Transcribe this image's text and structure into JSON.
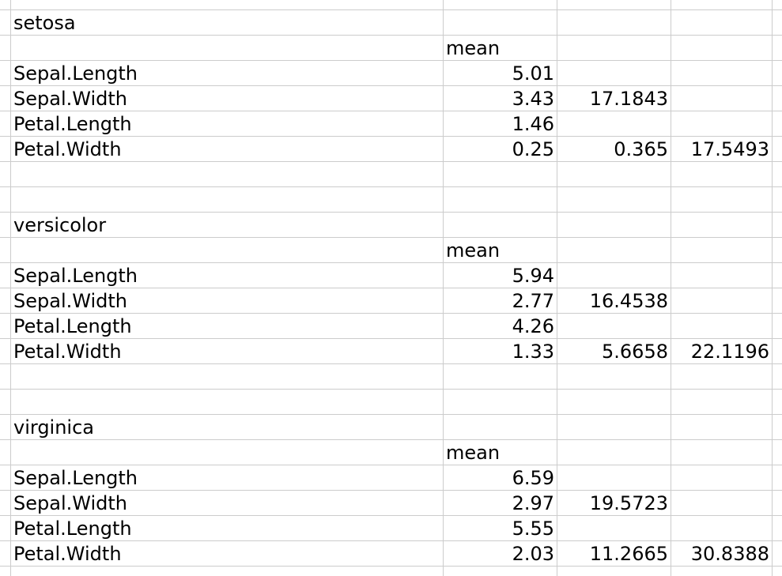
{
  "sheet": {
    "rows": [
      [
        "",
        "",
        "",
        ""
      ],
      [
        "setosa",
        "",
        "",
        ""
      ],
      [
        "",
        "mean",
        "",
        ""
      ],
      [
        "Sepal.Length",
        "5.01",
        "",
        ""
      ],
      [
        "Sepal.Width",
        "3.43",
        "17.1843",
        ""
      ],
      [
        "Petal.Length",
        "1.46",
        "",
        ""
      ],
      [
        "Petal.Width",
        "0.25",
        "0.365",
        "17.5493"
      ],
      [
        "",
        "",
        "",
        ""
      ],
      [
        "",
        "",
        "",
        ""
      ],
      [
        "versicolor",
        "",
        "",
        ""
      ],
      [
        "",
        "mean",
        "",
        ""
      ],
      [
        "Sepal.Length",
        "5.94",
        "",
        ""
      ],
      [
        "Sepal.Width",
        "2.77",
        "16.4538",
        ""
      ],
      [
        "Petal.Length",
        "4.26",
        "",
        ""
      ],
      [
        "Petal.Width",
        "1.33",
        "5.6658",
        "22.1196"
      ],
      [
        "",
        "",
        "",
        ""
      ],
      [
        "",
        "",
        "",
        ""
      ],
      [
        "virginica",
        "",
        "",
        ""
      ],
      [
        "",
        "mean",
        "",
        ""
      ],
      [
        "Sepal.Length",
        "6.59",
        "",
        ""
      ],
      [
        "Sepal.Width",
        "2.97",
        "19.5723",
        ""
      ],
      [
        "Petal.Length",
        "5.55",
        "",
        ""
      ],
      [
        "Petal.Width",
        "2.03",
        "11.2665",
        "30.8388"
      ],
      [
        "",
        "",
        "",
        ""
      ]
    ]
  }
}
